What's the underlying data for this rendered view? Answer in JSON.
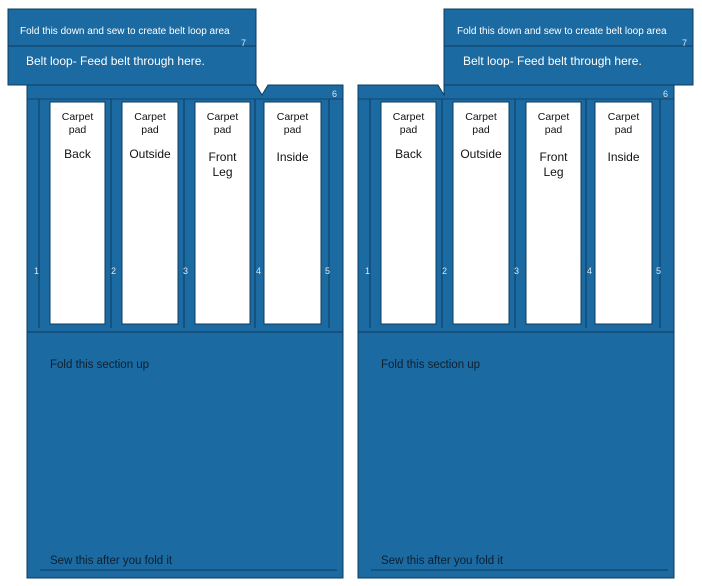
{
  "colors": {
    "panel": "#1b6aa1",
    "stroke": "#0e3c5e",
    "pad": "#ffffff"
  },
  "patterns": [
    {
      "flap_label": "Fold this down and sew to create belt loop area",
      "flap_number": "7",
      "belt_loop_label": "Belt loop- Feed belt through here.",
      "top_number": "6",
      "divider_numbers": [
        "1",
        "2",
        "3",
        "4",
        "5"
      ],
      "pads": [
        {
          "line1": "Carpet",
          "line2": "pad",
          "zone1": "Back",
          "zone2": ""
        },
        {
          "line1": "Carpet",
          "line2": "pad",
          "zone1": "Outside",
          "zone2": ""
        },
        {
          "line1": "Carpet",
          "line2": "pad",
          "zone1": "Front",
          "zone2": "Leg"
        },
        {
          "line1": "Carpet",
          "line2": "pad",
          "zone1": "Inside",
          "zone2": ""
        }
      ],
      "fold_label": "Fold this section up",
      "sew_label": "Sew this after you fold it"
    },
    {
      "flap_label": "Fold this down and sew to create belt loop area",
      "flap_number": "7",
      "belt_loop_label": "Belt loop- Feed belt through here.",
      "top_number": "6",
      "divider_numbers": [
        "1",
        "2",
        "3",
        "4",
        "5"
      ],
      "pads": [
        {
          "line1": "Carpet",
          "line2": "pad",
          "zone1": "Back",
          "zone2": ""
        },
        {
          "line1": "Carpet",
          "line2": "pad",
          "zone1": "Outside",
          "zone2": ""
        },
        {
          "line1": "Carpet",
          "line2": "pad",
          "zone1": "Front",
          "zone2": "Leg"
        },
        {
          "line1": "Carpet",
          "line2": "pad",
          "zone1": "Inside",
          "zone2": ""
        }
      ],
      "fold_label": "Fold this section up",
      "sew_label": "Sew this after you fold it"
    }
  ]
}
